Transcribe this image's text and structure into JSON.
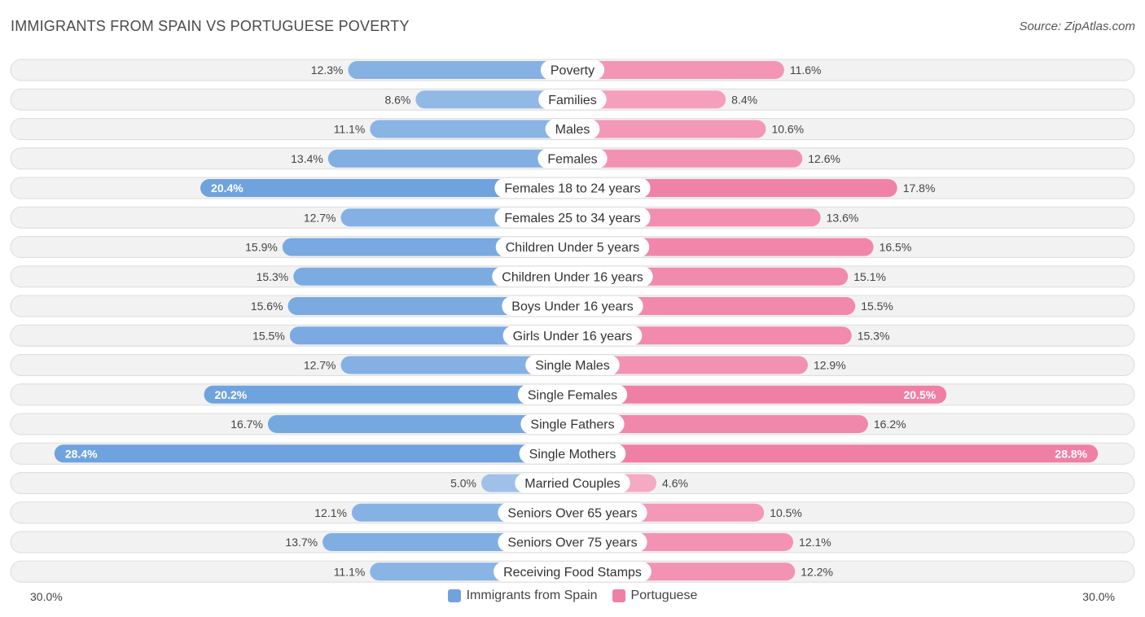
{
  "header": {
    "title": "IMMIGRANTS FROM SPAIN VS PORTUGUESE POVERTY",
    "source": "Source: ZipAtlas.com"
  },
  "colors": {
    "left": "#6fa3de",
    "right": "#f07fa5"
  },
  "chart_data": {
    "type": "bar",
    "orientation": "horizontal-diverging",
    "title": "IMMIGRANTS FROM SPAIN VS PORTUGUESE POVERTY",
    "categories": [
      "Poverty",
      "Families",
      "Males",
      "Females",
      "Females 18 to 24 years",
      "Females 25 to 34 years",
      "Children Under 5 years",
      "Children Under 16 years",
      "Boys Under 16 years",
      "Girls Under 16 years",
      "Single Males",
      "Single Females",
      "Single Fathers",
      "Single Mothers",
      "Married Couples",
      "Seniors Over 65 years",
      "Seniors Over 75 years",
      "Receiving Food Stamps"
    ],
    "series": [
      {
        "name": "Immigrants from Spain",
        "values": [
          12.3,
          8.6,
          11.1,
          13.4,
          20.4,
          12.7,
          15.9,
          15.3,
          15.6,
          15.5,
          12.7,
          20.2,
          16.7,
          28.4,
          5.0,
          12.1,
          13.7,
          11.1
        ],
        "labels": [
          "12.3%",
          "8.6%",
          "11.1%",
          "13.4%",
          "20.4%",
          "12.7%",
          "15.9%",
          "15.3%",
          "15.6%",
          "15.5%",
          "12.7%",
          "20.2%",
          "16.7%",
          "28.4%",
          "5.0%",
          "12.1%",
          "13.7%",
          "11.1%"
        ]
      },
      {
        "name": "Portuguese",
        "values": [
          11.6,
          8.4,
          10.6,
          12.6,
          17.8,
          13.6,
          16.5,
          15.1,
          15.5,
          15.3,
          12.9,
          20.5,
          16.2,
          28.8,
          4.6,
          10.5,
          12.1,
          12.2
        ],
        "labels": [
          "11.6%",
          "8.4%",
          "10.6%",
          "12.6%",
          "17.8%",
          "13.6%",
          "16.5%",
          "15.1%",
          "15.5%",
          "15.3%",
          "12.9%",
          "20.5%",
          "16.2%",
          "28.8%",
          "4.6%",
          "10.5%",
          "12.1%",
          "12.2%"
        ]
      }
    ],
    "xlim": [
      0,
      30
    ],
    "axis_labels": {
      "left": "30.0%",
      "right": "30.0%"
    },
    "legend": [
      "Immigrants from Spain",
      "Portuguese"
    ]
  }
}
